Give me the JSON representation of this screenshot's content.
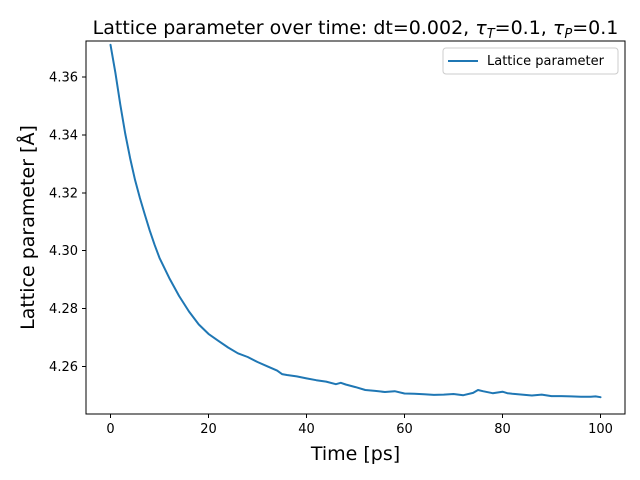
{
  "chart_data": {
    "type": "line",
    "title": "Lattice parameter over time: dt=0.002, τT=0.1, τP=0.1",
    "title_parts": {
      "prefix": "Lattice parameter over time: dt=0.002, ",
      "tau_symbol": "τ",
      "t_sub": "T",
      "t_value": "=0.1, ",
      "p_sub": "P",
      "p_value": "=0.1"
    },
    "xlabel": "Time [ps]",
    "ylabel": "Lattice parameter [Å]",
    "xlim": [
      -5,
      105
    ],
    "ylim": [
      4.2435,
      4.3725
    ],
    "xticks": [
      0,
      20,
      40,
      60,
      80,
      100
    ],
    "yticks": [
      4.26,
      4.28,
      4.3,
      4.32,
      4.34,
      4.36
    ],
    "xtick_labels": [
      "0",
      "20",
      "40",
      "60",
      "80",
      "100"
    ],
    "ytick_labels": [
      "4.26",
      "4.28",
      "4.30",
      "4.32",
      "4.34",
      "4.36"
    ],
    "legend": {
      "placement": "top-right",
      "entries": [
        "Lattice parameter"
      ]
    },
    "grid": false,
    "series": [
      {
        "name": "Lattice parameter",
        "color": "#1f77b4",
        "x": [
          0,
          1,
          2,
          3,
          4,
          5,
          6,
          7,
          8,
          9,
          10,
          12,
          14,
          16,
          18,
          20,
          22,
          24,
          26,
          28,
          30,
          32,
          34,
          35,
          36,
          38,
          40,
          42,
          44,
          46,
          47,
          48,
          50,
          52,
          54,
          56,
          58,
          60,
          62,
          64,
          66,
          68,
          70,
          72,
          74,
          75,
          76,
          78,
          80,
          81,
          82,
          84,
          86,
          88,
          90,
          92,
          94,
          96,
          98,
          99,
          100
        ],
        "y": [
          4.3712,
          4.3615,
          4.3505,
          4.3405,
          4.332,
          4.3245,
          4.3182,
          4.3125,
          4.307,
          4.302,
          4.2975,
          4.2905,
          4.2843,
          4.279,
          4.2745,
          4.2712,
          4.2688,
          4.2665,
          4.2645,
          4.2632,
          4.2615,
          4.26,
          4.2585,
          4.2573,
          4.257,
          4.2565,
          4.2558,
          4.2552,
          4.2547,
          4.2538,
          4.2543,
          4.2537,
          4.2528,
          4.2518,
          4.2515,
          4.2511,
          4.2514,
          4.2506,
          4.2505,
          4.2503,
          4.2501,
          4.2502,
          4.2504,
          4.25,
          4.2508,
          4.2518,
          4.2514,
          4.2507,
          4.2512,
          4.2507,
          4.2505,
          4.2502,
          4.2499,
          4.2502,
          4.2497,
          4.2497,
          4.2496,
          4.2495,
          4.2495,
          4.2496,
          4.2493
        ]
      }
    ]
  }
}
